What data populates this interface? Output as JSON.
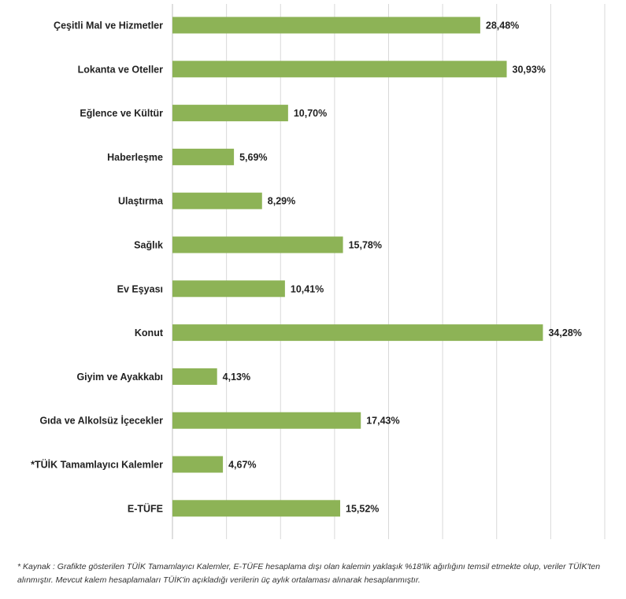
{
  "chart_data": {
    "type": "bar",
    "orientation": "horizontal",
    "categories": [
      "Çeşitli Mal ve Hizmetler",
      "Lokanta ve Oteller",
      "Eğlence ve Kültür",
      "Haberleşme",
      "Ulaştırma",
      "Sağlık",
      "Ev Eşyası",
      "Konut",
      "Giyim ve Ayakkabı",
      "Gıda ve Alkolsüz İçecekler",
      "*TÜİK Tamamlayıcı Kalemler",
      "E-TÜFE"
    ],
    "values": [
      28.48,
      30.93,
      10.7,
      5.69,
      8.29,
      15.78,
      10.41,
      34.28,
      4.13,
      17.43,
      4.67,
      15.52
    ],
    "value_labels": [
      "28,48%",
      "30,93%",
      "10,70%",
      "5,69%",
      "8,29%",
      "15,78%",
      "10,41%",
      "34,28%",
      "4,13%",
      "17,43%",
      "4,67%",
      "15,52%"
    ],
    "xlim": [
      0,
      40
    ],
    "grid": true,
    "bar_color": "#8db356",
    "grid_color": "#d9d9d9"
  },
  "footnote": "*  Kaynak : Grafikte gösterilen TÜİK Tamamlayıcı Kalemler, E-TÜFE hesaplama dışı olan kalemin yaklaşık %18'lik ağırlığını temsil etmekte olup, veriler TÜİK'ten alınmıştır. Mevcut kalem hesaplamaları TÜİK'in açıkladığı verilerin üç aylık ortalaması alınarak hesaplanmıştır."
}
